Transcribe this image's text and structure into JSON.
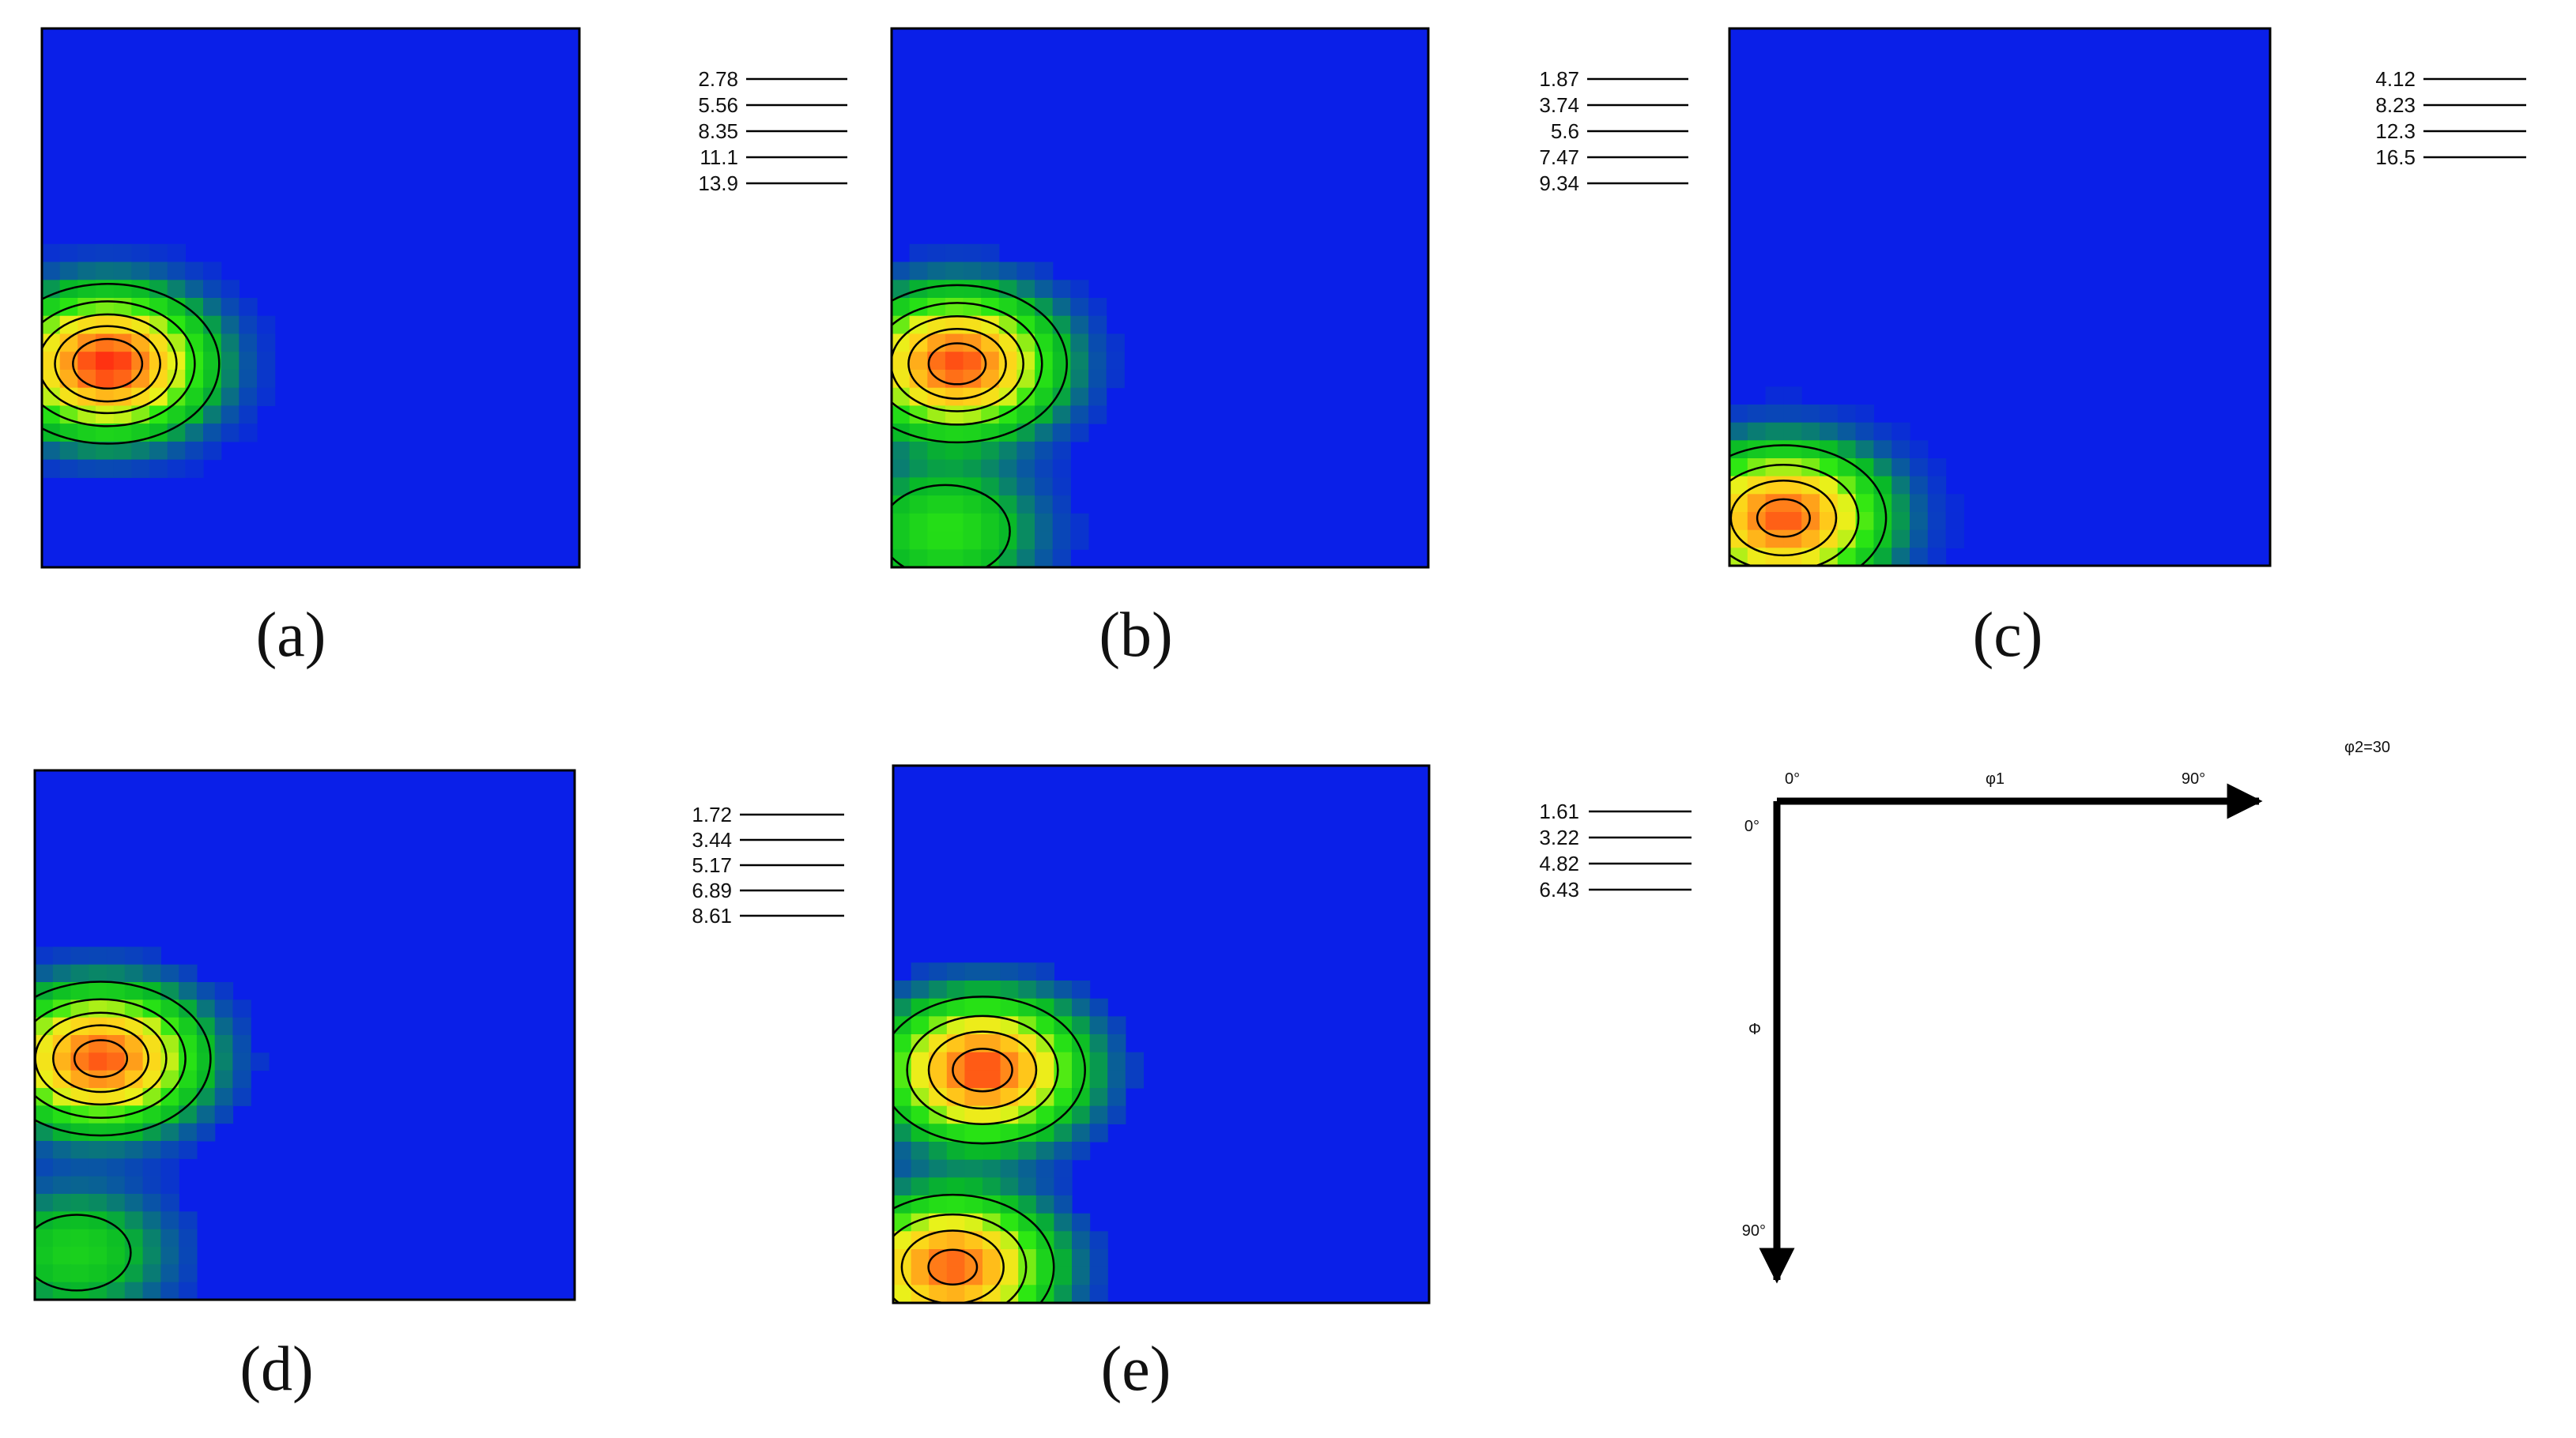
{
  "chart_data": {
    "type": "heatmap",
    "colors": {
      "background": "#0a1fe8",
      "contour": "#000000",
      "ramp": [
        "#0a1fe8",
        "#08b828",
        "#2ce812",
        "#e8f21a",
        "#ffd21a",
        "#ff8a1a",
        "#ff2a10"
      ]
    },
    "panels": [
      {
        "id": "a",
        "label": "(a)",
        "levels": [
          "2.78",
          "5.56",
          "8.35",
          "11.1",
          "13.9"
        ],
        "peaks": [
          {
            "phi1": 11,
            "Phi": 56,
            "value": 16.5
          }
        ]
      },
      {
        "id": "b",
        "label": "(b)",
        "levels": [
          "1.87",
          "3.74",
          "5.6",
          "7.47",
          "9.34"
        ],
        "peaks": [
          {
            "phi1": 11,
            "Phi": 56,
            "value": 10.5
          },
          {
            "phi1": 9,
            "Phi": 84,
            "value": 3.4
          }
        ]
      },
      {
        "id": "c",
        "label": "(c)",
        "levels": [
          "4.12",
          "8.23",
          "12.3",
          "16.5"
        ],
        "peaks": [
          {
            "phi1": 9,
            "Phi": 82,
            "value": 18.2
          }
        ]
      },
      {
        "id": "d",
        "label": "(d)",
        "levels": [
          "1.72",
          "3.44",
          "5.17",
          "6.89",
          "8.61"
        ],
        "peaks": [
          {
            "phi1": 11,
            "Phi": 49,
            "value": 9.5
          },
          {
            "phi1": 7,
            "Phi": 82,
            "value": 2.6
          }
        ]
      },
      {
        "id": "e",
        "label": "(e)",
        "levels": [
          "1.61",
          "3.22",
          "4.82",
          "6.43"
        ],
        "peaks": [
          {
            "phi1": 15,
            "Phi": 51,
            "value": 7.3
          },
          {
            "phi1": 10,
            "Phi": 84,
            "value": 7.0
          }
        ]
      }
    ],
    "key": {
      "phi1_label": "φ1",
      "phi_label": "Φ",
      "phi2_label": "φ2=30",
      "origin_label": "0°",
      "phi1_max_label": "90°",
      "phi_origin_label": "0°",
      "phi_max_label": "90°",
      "phi1_range": [
        0,
        90
      ],
      "phi_range": [
        0,
        90
      ]
    }
  }
}
